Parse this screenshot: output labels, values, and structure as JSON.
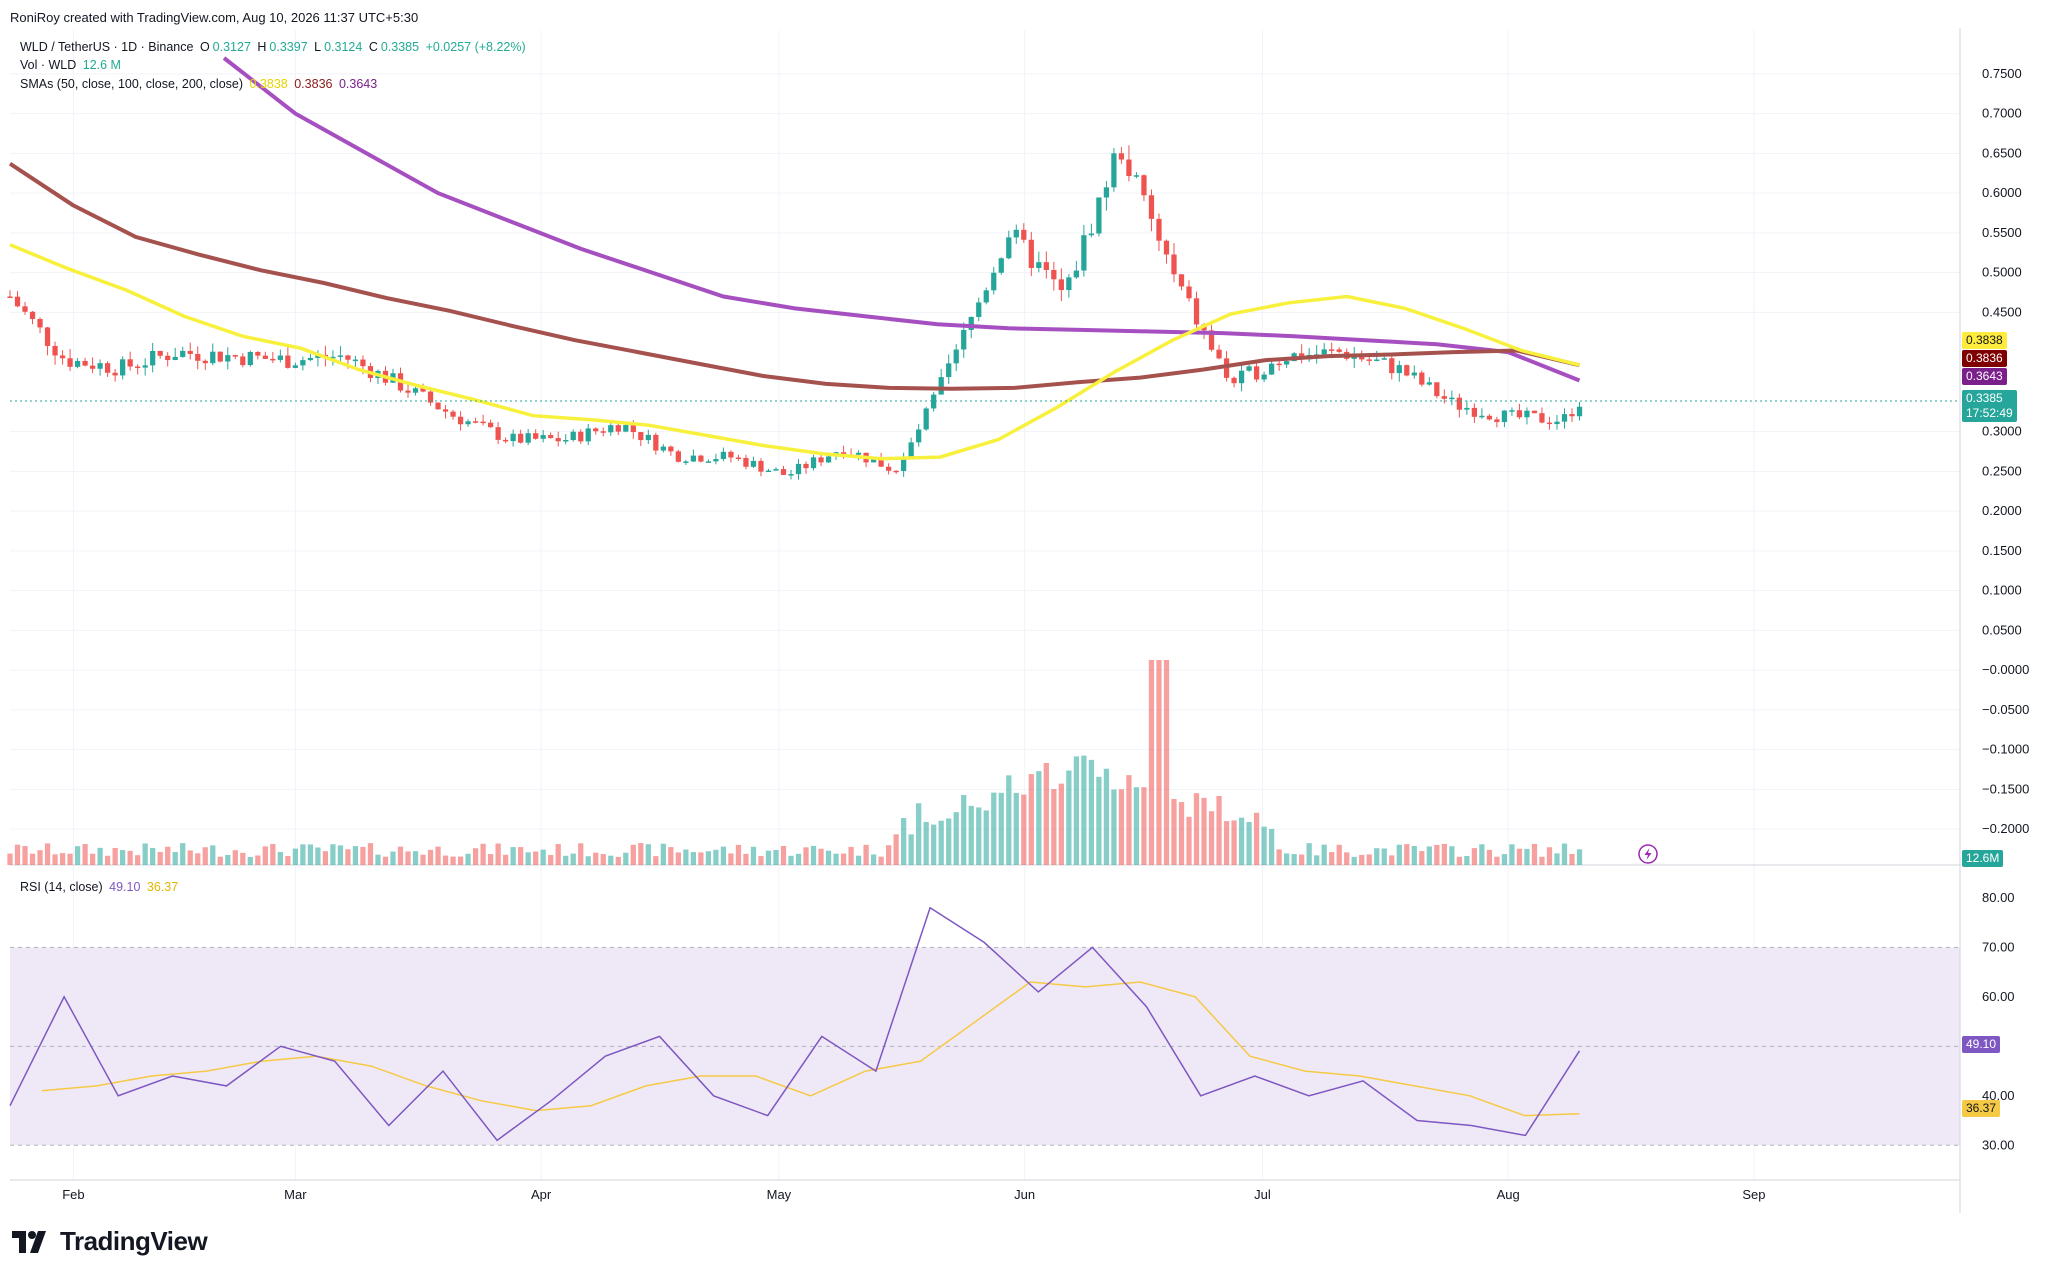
{
  "credit": "RoniRoy created with TradingView.com, Aug 10, 2026 11:37 UTC+5:30",
  "legend": {
    "symbol": "WLD / TetherUS · 1D · Binance",
    "o_label": "O",
    "o": "0.3127",
    "h_label": "H",
    "h": "0.3397",
    "l_label": "L",
    "l": "0.3124",
    "c_label": "C",
    "c": "0.3385",
    "change": "+0.0257 (+8.22%)",
    "vol_label": "Vol · WLD",
    "vol": "12.6 M",
    "sma_label": "SMAs (50, close, 100, close, 200, close)",
    "sma50": "0.3838",
    "sma100": "0.3836",
    "sma200": "0.3643",
    "rsi_label": "RSI (14, close)",
    "rsi": "49.10",
    "rsi_ma": "36.37"
  },
  "price_axis": [
    "0.7500",
    "0.7000",
    "0.6500",
    "0.6000",
    "0.5500",
    "0.5000",
    "0.4500",
    "0.3000",
    "0.2500",
    "0.2000",
    "0.1500",
    "0.1000",
    "0.0500",
    "−0.0000",
    "−0.0500",
    "−0.1000",
    "−0.1500",
    "−0.2000"
  ],
  "rsi_axis": [
    "80.00",
    "70.00",
    "60.00",
    "40.00",
    "30.00"
  ],
  "labels": {
    "sma50": "0.3838",
    "sma100": "0.3836",
    "sma200": "0.3643",
    "price": "0.3385",
    "countdown": "17:52:49",
    "vol": "12.6M",
    "rsi": "49.10",
    "rsi_ma": "36.37"
  },
  "months": [
    "Feb",
    "Mar",
    "Apr",
    "May",
    "Jun",
    "Jul",
    "Aug",
    "Sep"
  ],
  "brand": "TradingView",
  "colors": {
    "up": "#26a69a",
    "down": "#ef5350",
    "sma50": "#f7f03c",
    "sma100": "#a5524e",
    "sma200": "#a64fc0",
    "rsi": "#7e57c2",
    "rsi_ma": "#f6c945",
    "rsi_band": "#ede7f6"
  },
  "chart_data": {
    "type": "candlestick",
    "pair": "WLD / TetherUS",
    "interval": "1D",
    "x_range": [
      "2026-01-24",
      "2026-09-27"
    ],
    "price_range": [
      -0.22,
      0.77
    ],
    "rsi_range": [
      25,
      82
    ],
    "x": [
      "2026-01-24",
      "2026-01-31",
      "2026-02-07",
      "2026-02-14",
      "2026-02-21",
      "2026-02-28",
      "2026-03-07",
      "2026-03-14",
      "2026-03-21",
      "2026-03-28",
      "2026-04-04",
      "2026-04-11",
      "2026-04-18",
      "2026-04-25",
      "2026-05-02",
      "2026-05-09",
      "2026-05-16",
      "2026-05-23",
      "2026-05-30",
      "2026-06-06",
      "2026-06-13",
      "2026-06-20",
      "2026-06-27",
      "2026-07-04",
      "2026-07-11",
      "2026-07-18",
      "2026-07-25",
      "2026-08-01",
      "2026-08-08",
      "2026-08-10"
    ],
    "close": [
      0.47,
      0.39,
      0.38,
      0.4,
      0.395,
      0.39,
      0.395,
      0.36,
      0.32,
      0.29,
      0.29,
      0.31,
      0.27,
      0.268,
      0.245,
      0.28,
      0.25,
      0.39,
      0.55,
      0.47,
      0.66,
      0.49,
      0.36,
      0.395,
      0.4,
      0.38,
      0.335,
      0.318,
      0.315,
      0.3385
    ],
    "sma50": [
      0.535,
      0.505,
      0.478,
      0.445,
      0.42,
      0.405,
      0.378,
      0.358,
      0.34,
      0.32,
      0.315,
      0.308,
      0.295,
      0.282,
      0.272,
      0.266,
      0.268,
      0.29,
      0.33,
      0.375,
      0.415,
      0.448,
      0.462,
      0.47,
      0.455,
      0.43,
      0.402,
      0.3838
    ],
    "sma100": [
      0.637,
      0.585,
      0.545,
      0.523,
      0.503,
      0.487,
      0.468,
      0.452,
      0.433,
      0.415,
      0.4,
      0.385,
      0.37,
      0.36,
      0.355,
      0.354,
      0.355,
      0.362,
      0.368,
      0.378,
      0.39,
      0.395,
      0.397,
      0.4,
      0.402,
      0.3836
    ],
    "sma200": [
      0.77,
      0.7,
      0.65,
      0.6,
      0.565,
      0.53,
      0.5,
      0.47,
      0.455,
      0.445,
      0.435,
      0.43,
      0.428,
      0.426,
      0.424,
      0.42,
      0.415,
      0.41,
      0.4,
      0.3643
    ],
    "volume_peak_date": "2026-06-18",
    "volume_last": "12.6M",
    "rsi": [
      38,
      60,
      40,
      44,
      42,
      50,
      47,
      34,
      45,
      31,
      39,
      48,
      52,
      40,
      36,
      52,
      45,
      78,
      71,
      61,
      70,
      58,
      40,
      44,
      40,
      43,
      35,
      34,
      32,
      49.1
    ],
    "rsi_ma": [
      41,
      42,
      44,
      45,
      47,
      48,
      46,
      42,
      39,
      37,
      38,
      42,
      44,
      44,
      40,
      45,
      47,
      55,
      63,
      62,
      63,
      60,
      48,
      45,
      44,
      42,
      40,
      36,
      36.37
    ],
    "rsi_bands": [
      30,
      70
    ],
    "xlabel": "",
    "ylabel": ""
  }
}
